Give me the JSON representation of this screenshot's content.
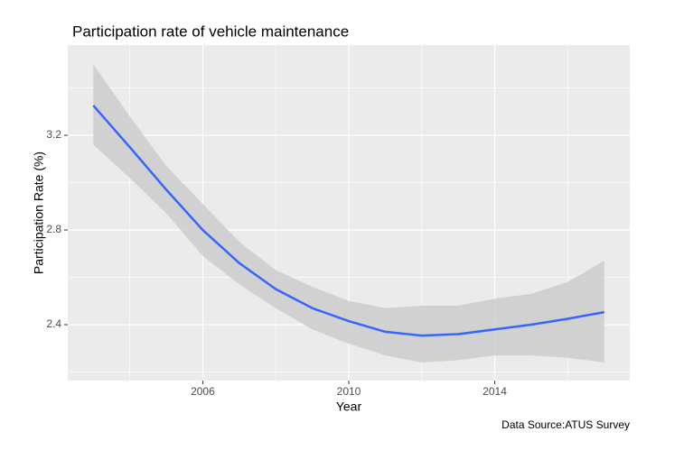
{
  "chart_data": {
    "type": "smooth",
    "title": "Participation rate of vehicle maintenance",
    "x_label": "Year",
    "y_label": "Participation Rate (%)",
    "caption": "Data Source:ATUS Survey",
    "x": [
      2003,
      2004,
      2005,
      2006,
      2007,
      2008,
      2009,
      2010,
      2011,
      2012,
      2013,
      2014,
      2015,
      2016,
      2017
    ],
    "series": [
      {
        "color": "#3366ff",
        "band_color": "#cccccc",
        "values": [
          3.326,
          3.15,
          2.97,
          2.8,
          2.66,
          2.55,
          2.47,
          2.415,
          2.37,
          2.354,
          2.36,
          2.38,
          2.4,
          2.425,
          2.453
        ],
        "lower": [
          3.16,
          3.02,
          2.87,
          2.69,
          2.57,
          2.47,
          2.38,
          2.32,
          2.27,
          2.24,
          2.25,
          2.27,
          2.27,
          2.26,
          2.24
        ],
        "upper": [
          3.5,
          3.28,
          3.07,
          2.91,
          2.75,
          2.63,
          2.56,
          2.5,
          2.47,
          2.48,
          2.48,
          2.51,
          2.53,
          2.58,
          2.67
        ]
      }
    ],
    "xlim": [
      2002.3,
      2017.7
    ],
    "ylim": [
      2.164,
      3.581
    ],
    "xticks": [
      2006,
      2010,
      2014
    ],
    "yticks": [
      2.4,
      2.8,
      3.2
    ],
    "x_minor_grid": [
      2004,
      2008,
      2012,
      2016
    ],
    "y_minor_grid": [
      2.2,
      2.6,
      3.0,
      3.4
    ],
    "grid": true
  }
}
